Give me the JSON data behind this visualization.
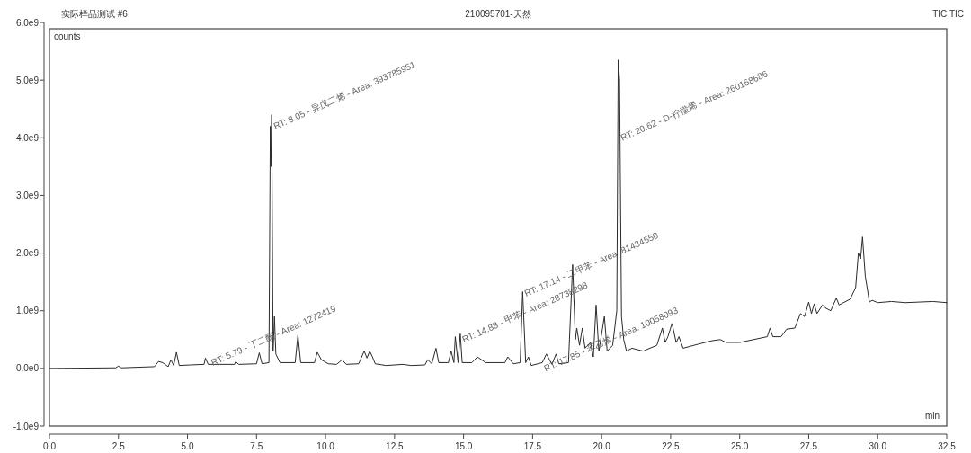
{
  "chart_data": {
    "type": "line",
    "title": "210095701-天然",
    "subtitle": "实际样品测试 #6",
    "xlabel": "min",
    "ylabel": "counts",
    "color": "#2b2b2b",
    "annotations": [
      "TIC TIC",
      {
        "text": "RT: 5.79 - 丁二酮 - Area: 1272419",
        "x": 5.79,
        "y": 200000000.0
      },
      {
        "text": "RT: 8.05 - 异戊二烯 - Area: 393785951",
        "x": 8.05,
        "y": 4300000000.0
      },
      {
        "text": "RT: 14.88 - 甲苯 - Area: 28738298",
        "x": 14.88,
        "y": 600000000.0
      },
      {
        "text": "RT: 17.14 - 二甲苯 - Area: 81434550",
        "x": 17.14,
        "y": 1400000000.0
      },
      {
        "text": "RT: 17.85 - 苯乙烯 - Area: 10058093",
        "x": 17.85,
        "y": 100000000.0
      },
      {
        "text": "RT: 20.62 - D-柠檬烯 - Area: 260158686",
        "x": 20.62,
        "y": 4100000000.0
      }
    ],
    "xlim": [
      0,
      32.5
    ],
    "ylim": [
      -1000000000.0,
      6000000000.0
    ],
    "xticks": [
      {
        "value": 0,
        "label": "0.0"
      },
      2.5,
      {
        "value": 5,
        "label": "5.0"
      },
      7.5,
      {
        "value": 10,
        "label": "10.0"
      },
      12.5,
      {
        "value": 15,
        "label": "15.0"
      },
      17.5,
      {
        "value": 20,
        "label": "20.0"
      },
      22.5,
      {
        "value": 25,
        "label": "25.0"
      },
      27.5,
      {
        "value": 30,
        "label": "30.0"
      },
      32.5
    ],
    "yticks": [
      {
        "value": -1000000000.0,
        "label": "-1.0e9"
      },
      {
        "value": 0,
        "label": "0.0e0"
      },
      {
        "value": 1000000000.0,
        "label": "1.0e9"
      },
      {
        "value": 2000000000.0,
        "label": "2.0e9"
      },
      {
        "value": 3000000000.0,
        "label": "3.0e9"
      },
      {
        "value": 4000000000.0,
        "label": "4.0e9"
      },
      {
        "value": 5000000000.0,
        "label": "5.0e9"
      },
      {
        "value": 6000000000.0,
        "label": "6.0e9"
      }
    ],
    "x": [
      0,
      2.4,
      2.5,
      2.6,
      3.8,
      3.95,
      4.1,
      4.3,
      4.4,
      4.5,
      4.6,
      4.7,
      5.1,
      5.6,
      5.65,
      5.75,
      6.7,
      6.75,
      6.85,
      7.5,
      7.6,
      7.7,
      7.95,
      8.0,
      8.02,
      8.05,
      8.1,
      8.15,
      8.2,
      8.35,
      8.9,
      9.0,
      9.1,
      9.6,
      9.7,
      9.85,
      10.1,
      10.4,
      10.6,
      10.75,
      11.2,
      11.4,
      11.5,
      11.6,
      11.7,
      11.8,
      12.2,
      12.8,
      13.1,
      13.6,
      13.7,
      13.85,
      14.0,
      14.1,
      14.45,
      14.55,
      14.65,
      14.7,
      14.8,
      14.88,
      14.95,
      15.3,
      15.5,
      15.8,
      16.5,
      16.6,
      16.8,
      17.05,
      17.14,
      17.25,
      17.35,
      17.45,
      17.85,
      18.0,
      18.2,
      18.35,
      18.45,
      18.8,
      18.95,
      19.05,
      19.1,
      19.2,
      19.3,
      19.4,
      19.6,
      19.7,
      19.8,
      19.9,
      20.1,
      20.2,
      20.4,
      20.55,
      20.6,
      20.65,
      20.72,
      20.8,
      20.9,
      21.1,
      21.5,
      22.0,
      22.2,
      22.3,
      22.4,
      22.55,
      22.7,
      22.8,
      22.95,
      23.5,
      24.0,
      24.3,
      24.5,
      25.0,
      25.5,
      26.0,
      26.1,
      26.2,
      26.5,
      26.7,
      27.0,
      27.2,
      27.35,
      27.5,
      27.6,
      27.7,
      27.8,
      28.0,
      28.1,
      28.3,
      28.5,
      28.6,
      29.0,
      29.2,
      29.3,
      29.38,
      29.45,
      29.55,
      29.7,
      29.8,
      30.0,
      30.5,
      31.0,
      31.5,
      32.0,
      32.5
    ],
    "values": [
      0,
      10000000.0,
      40000000.0,
      10000000.0,
      30000000.0,
      120000000.0,
      100000000.0,
      30000000.0,
      150000000.0,
      50000000.0,
      280000000.0,
      50000000.0,
      60000000.0,
      70000000.0,
      180000000.0,
      70000000.0,
      70000000.0,
      120000000.0,
      70000000.0,
      80000000.0,
      270000000.0,
      80000000.0,
      100000000.0,
      4200000000.0,
      3500000000.0,
      4400000000.0,
      300000000.0,
      900000000.0,
      250000000.0,
      100000000.0,
      100000000.0,
      580000000.0,
      100000000.0,
      100000000.0,
      280000000.0,
      150000000.0,
      80000000.0,
      70000000.0,
      150000000.0,
      70000000.0,
      80000000.0,
      300000000.0,
      180000000.0,
      300000000.0,
      200000000.0,
      80000000.0,
      50000000.0,
      70000000.0,
      50000000.0,
      60000000.0,
      150000000.0,
      80000000.0,
      350000000.0,
      100000000.0,
      100000000.0,
      300000000.0,
      100000000.0,
      550000000.0,
      100000000.0,
      600000000.0,
      100000000.0,
      100000000.0,
      200000000.0,
      100000000.0,
      100000000.0,
      200000000.0,
      80000000.0,
      100000000.0,
      1330000000.0,
      100000000.0,
      200000000.0,
      50000000.0,
      100000000.0,
      250000000.0,
      70000000.0,
      250000000.0,
      80000000.0,
      100000000.0,
      1800000000.0,
      500000000.0,
      700000000.0,
      400000000.0,
      700000000.0,
      350000000.0,
      450000000.0,
      200000000.0,
      1100000000.0,
      300000000.0,
      900000000.0,
      300000000.0,
      400000000.0,
      1000000000.0,
      5350000000.0,
      5000000000.0,
      900000000.0,
      500000000.0,
      300000000.0,
      350000000.0,
      300000000.0,
      400000000.0,
      700000000.0,
      450000000.0,
      550000000.0,
      780000000.0,
      450000000.0,
      550000000.0,
      350000000.0,
      420000000.0,
      480000000.0,
      500000000.0,
      450000000.0,
      450000000.0,
      500000000.0,
      550000000.0,
      700000000.0,
      550000000.0,
      550000000.0,
      680000000.0,
      700000000.0,
      950000000.0,
      900000000.0,
      1150000000.0,
      950000000.0,
      1120000000.0,
      950000000.0,
      1100000000.0,
      1050000000.0,
      1000000000.0,
      1220000000.0,
      1100000000.0,
      1200000000.0,
      1400000000.0,
      2000000000.0,
      1900000000.0,
      2280000000.0,
      1600000000.0,
      1150000000.0,
      1180000000.0,
      1140000000.0,
      1160000000.0,
      1140000000.0,
      1150000000.0,
      1160000000.0,
      1140000000.0
    ]
  }
}
